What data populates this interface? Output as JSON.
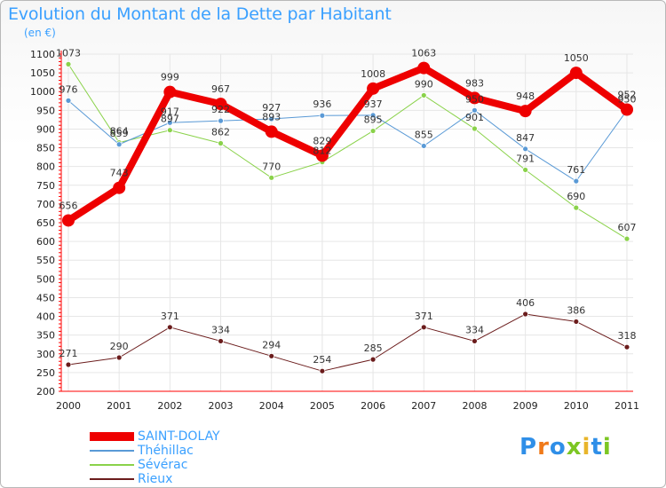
{
  "header": {
    "title": "Evolution du Montant de la Dette par Habitant",
    "unit": "(en €)"
  },
  "colors": {
    "title": "#3aa0ff",
    "axis_text": "#222222",
    "grid": "#e6e6e6",
    "axis": "#ff0000"
  },
  "logo": {
    "text": "Proxiti",
    "letters": [
      "P",
      "r",
      "o",
      "x",
      "i",
      "t",
      "i"
    ],
    "letter_colors": [
      "#2f8fe8",
      "#f07a1a",
      "#2f8fe8",
      "#7cc623",
      "#e8b52a",
      "#2f8fe8",
      "#7cc623"
    ]
  },
  "chart_data": {
    "type": "line",
    "title": "Evolution du Montant de la Dette par Habitant",
    "ylabel": "(en €)",
    "xlabel": "",
    "x": [
      "2000",
      "2001",
      "2002",
      "2003",
      "2004",
      "2005",
      "2006",
      "2007",
      "2008",
      "2009",
      "2010",
      "2011"
    ],
    "ylim": [
      200,
      1100
    ],
    "yticks": [
      "200",
      "250",
      "300",
      "350",
      "400",
      "450",
      "500",
      "550",
      "600",
      "650",
      "700",
      "750",
      "800",
      "850",
      "900",
      "950",
      "1000",
      "1050",
      "1100"
    ],
    "grid": true,
    "legend_position": "bottom-left",
    "series": [
      {
        "name": "SAINT-DOLAY",
        "color": "#ee0000",
        "width": 8,
        "marker": 7,
        "values": [
          656,
          743,
          999,
          967,
          893,
          829,
          1008,
          1063,
          983,
          948,
          1050,
          952
        ],
        "labels": [
          "656",
          "743",
          "999",
          "967",
          "893",
          "829",
          "1008",
          "1063",
          "983",
          "948",
          "1050",
          "952"
        ]
      },
      {
        "name": "Théhillac",
        "color": "#5a9ad6",
        "width": 1,
        "marker": 3,
        "values": [
          976,
          859,
          917,
          922,
          927,
          936,
          937,
          855,
          950,
          847,
          761,
          950
        ],
        "labels": [
          "976",
          "859",
          "917",
          "922",
          "927",
          "936",
          "937",
          "855",
          "950",
          "847",
          "761",
          "950"
        ]
      },
      {
        "name": "Sévérac",
        "color": "#8ad24a",
        "width": 1,
        "marker": 3,
        "values": [
          1073,
          864,
          897,
          862,
          770,
          812,
          895,
          990,
          901,
          791,
          690,
          607
        ],
        "labels": [
          "1073",
          "864",
          "897",
          "862",
          "770",
          "812",
          "895",
          "990",
          "901",
          "791",
          "690",
          "607"
        ]
      },
      {
        "name": "Rieux",
        "color": "#6b1c1c",
        "width": 1,
        "marker": 3,
        "values": [
          271,
          290,
          371,
          334,
          294,
          254,
          285,
          371,
          334,
          406,
          386,
          318
        ],
        "labels": [
          "271",
          "290",
          "371",
          "334",
          "294",
          "254",
          "285",
          "371",
          "334",
          "406",
          "386",
          "318"
        ]
      }
    ]
  }
}
